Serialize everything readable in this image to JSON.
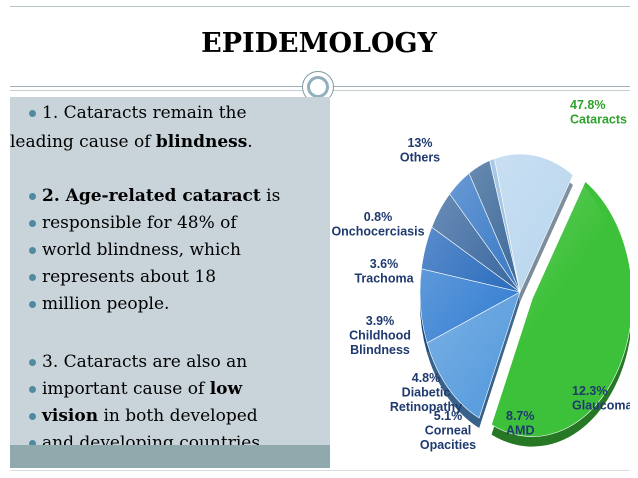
{
  "title": "EPIDEMOLOGY",
  "bullets": {
    "b1_line1": "1. Cataracts remain the",
    "b1_line2_pre": "leading cause of ",
    "b1_line2_bold": "blindness",
    "b1_line2_post": ".",
    "b2_bold": "2. Age-related cataract",
    "b2_post": " is",
    "b3": "responsible for 48% of",
    "b4": "world blindness, which",
    "b5": "represents about 18",
    "b6": "million people.",
    "b7": "3. Cataracts are also an",
    "b8_pre": "important cause of ",
    "b8_bold": "low",
    "b9_bold": "vision",
    "b9_post": " in both developed",
    "b10": "and developing countries."
  },
  "chart_data": {
    "type": "pie",
    "title": "",
    "slices": [
      {
        "label": "Cataracts",
        "value": 47.8,
        "value_label": "47.8%",
        "color": "#3ec13a"
      },
      {
        "label": "Glaucoma",
        "value": 12.3,
        "value_label": "12.3%",
        "color": "#5b9ede"
      },
      {
        "label": "AMD",
        "value": 8.7,
        "value_label": "8.7%",
        "color": "#2f7bd0"
      },
      {
        "label": "Corneal Opacities",
        "value": 5.1,
        "value_label": "5.1%",
        "color": "#1d62b8"
      },
      {
        "label": "Diabetic Retinopathy",
        "value": 4.8,
        "value_label": "4.8%",
        "color": "#2c5d98"
      },
      {
        "label": "Childhood Blindness",
        "value": 3.9,
        "value_label": "3.9%",
        "color": "#2b70c2"
      },
      {
        "label": "Trachoma",
        "value": 3.6,
        "value_label": "3.6%",
        "color": "#2f5f93"
      },
      {
        "label": "Onchocerciasis",
        "value": 0.8,
        "value_label": "0.8%",
        "color": "#8fb9de"
      },
      {
        "label": "Others",
        "value": 13,
        "value_label": "13%",
        "color": "#b8d5ee"
      }
    ]
  }
}
